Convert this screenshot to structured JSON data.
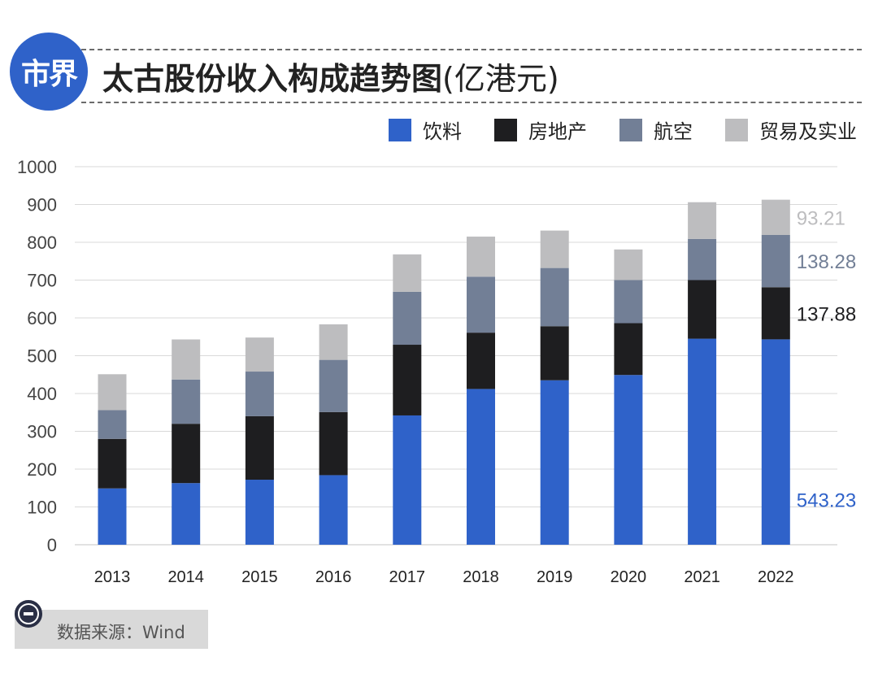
{
  "header": {
    "logo_text": "市界",
    "title": "太古股份收入构成趋势图",
    "title_unit": "(亿港元)"
  },
  "source": {
    "text": "数据来源：Wind",
    "icon": "minus-circle-icon"
  },
  "colors": {
    "brand": "#2f62c9",
    "grid": "#d9d9d9"
  },
  "chart_data": {
    "type": "bar",
    "stacked": true,
    "categories": [
      "2013",
      "2014",
      "2015",
      "2016",
      "2017",
      "2018",
      "2019",
      "2020",
      "2021",
      "2022"
    ],
    "ylim": [
      0,
      1000
    ],
    "yticks": [
      0,
      100,
      200,
      300,
      400,
      500,
      600,
      700,
      800,
      900,
      1000
    ],
    "grid": true,
    "legend_position": "top-right",
    "series": [
      {
        "name": "饮料",
        "color": "#2f62c9",
        "values": [
          149,
          163,
          172,
          184,
          342,
          412,
          435,
          449,
          545,
          543.23
        ]
      },
      {
        "name": "房地产",
        "color": "#1e1e20",
        "values": [
          131,
          157,
          168,
          167,
          187,
          149,
          143,
          137,
          155,
          137.88
        ]
      },
      {
        "name": "航空",
        "color": "#727f96",
        "values": [
          76,
          117,
          118,
          138,
          140,
          148,
          154,
          114,
          109,
          138.28
        ]
      },
      {
        "name": "贸易及实业",
        "color": "#bdbdbf",
        "values": [
          95,
          106,
          90,
          94,
          99,
          106,
          99,
          81,
          97,
          93.21
        ]
      }
    ],
    "annotations": [
      {
        "series": "贸易及实业",
        "category": "2022",
        "text": "93.21",
        "color": "#bdbdbf"
      },
      {
        "series": "航空",
        "category": "2022",
        "text": "138.28",
        "color": "#727f96"
      },
      {
        "series": "房地产",
        "category": "2022",
        "text": "137.88",
        "color": "#1e1e20"
      },
      {
        "series": "饮料",
        "category": "2022",
        "text": "543.23",
        "color": "#2f62c9"
      }
    ]
  }
}
